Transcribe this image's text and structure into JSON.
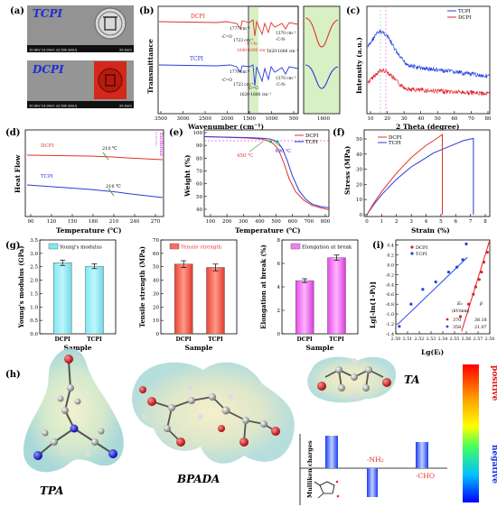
{
  "panels": {
    "a": {
      "label": "(a)",
      "top_title": "TCPI",
      "bottom_title": "DCPI",
      "sem_info_top": "10.0kV 10.0mm x2.50k SE(U)",
      "scale_top": "20.0um",
      "sem_info_bottom": "10.0kV 10.0mm x2.50k SE(U)",
      "scale_bottom": "20.0um",
      "colors": {
        "tcpi_title": "#1a2fd6",
        "dcpi_title": "#1a2fd6"
      }
    },
    "b": {
      "label": "(b)",
      "xlabel": "Wavenumber (cm⁻¹)",
      "ylabel": "Transmittance",
      "ticks": [
        "3500",
        "3000",
        "2500",
        "2000",
        "1500",
        "1000",
        "500"
      ],
      "inset_ticks": [
        "1600"
      ],
      "dcpi_label": "DCPI",
      "tcpi_label": "TCPI",
      "ann": {
        "d1": "1777 cm⁻¹",
        "d2": "-C=O",
        "d3": "1723 cm⁻¹",
        "d4": "-C=N-",
        "d5": "1640-1690 cm⁻¹",
        "d6": "1370 cm⁻¹",
        "d7": "-C-N-",
        "d8": "1620-1680 cm⁻¹",
        "t1": "1779 cm⁻¹",
        "t2": "-C=O",
        "t3": "1723 cm⁻¹",
        "t4": "-C=C-",
        "t5": "1620-1680 cm⁻¹",
        "t6": "1370 cm⁻¹",
        "t7": "-C-N-"
      }
    },
    "c": {
      "label": "(c)",
      "xlabel": "2 Theta (degree)",
      "ylabel": "Intensity (a.u.)",
      "ticks": [
        "10",
        "20",
        "30",
        "40",
        "50",
        "60",
        "70",
        "80"
      ],
      "legend": [
        "TCPI",
        "DCPI"
      ]
    },
    "d": {
      "label": "(d)",
      "xlabel": "Temperature (℃)",
      "ylabel": "Heat Flow",
      "ticks": [
        "90",
        "120",
        "150",
        "180",
        "210",
        "240",
        "270"
      ],
      "dcpi": "DCPI",
      "tcpi": "TCPI",
      "tg_d": "210 ℃",
      "tg_t": "216 ℃",
      "exo": "Exothermic"
    },
    "e": {
      "label": "(e)",
      "xlabel": "Temperature (℃)",
      "ylabel": "Weight (%)",
      "xticks": [
        "100",
        "200",
        "300",
        "400",
        "500",
        "600",
        "700",
        "800"
      ],
      "yticks": [
        "100",
        "90",
        "80",
        "70",
        "60",
        "50",
        "40"
      ],
      "legend": [
        "DCPI",
        "TCPI"
      ],
      "t1": "450 ℃",
      "t2": "490 ℃"
    },
    "f": {
      "label": "(f)",
      "xlabel": "Strain (%)",
      "ylabel": "Stress (MPa)",
      "xticks": [
        "0",
        "1",
        "2",
        "3",
        "4",
        "5",
        "6",
        "7",
        "8"
      ],
      "yticks": [
        "0",
        "10",
        "20",
        "30",
        "40",
        "50"
      ],
      "legend": [
        "DCPI",
        "TCPI"
      ]
    },
    "g": {
      "label": "(g)",
      "xlabel": "Sample",
      "charts": [
        {
          "ylabel": "Young's modulus (GPa)",
          "legend": "Young's modulus",
          "yticks": [
            "0.0",
            "0.5",
            "1.0",
            "1.5",
            "2.0",
            "2.5",
            "3.0",
            "3.5"
          ]
        },
        {
          "ylabel": "Tensile strength (MPa)",
          "legend": "Tensile strength",
          "yticks": [
            "0",
            "10",
            "20",
            "30",
            "40",
            "50",
            "60",
            "70"
          ]
        },
        {
          "ylabel": "Elongation at break (%)",
          "legend": "Elongation at break",
          "yticks": [
            "0",
            "2",
            "4",
            "6",
            "8"
          ]
        }
      ],
      "cats": [
        "DCPI",
        "TCPI"
      ]
    },
    "i": {
      "label": "(i)",
      "xlabel": "Lg(Eᵢ)",
      "ylabel": "Lg[-ln(1-Pᵢ)]",
      "xticks": [
        "2.50",
        "2.51",
        "2.52",
        "2.53",
        "2.54",
        "2.55",
        "2.56",
        "2.57",
        "2.58"
      ],
      "yticks": [
        "0.4",
        "0.2",
        "0.0",
        "-0.2",
        "-0.4",
        "-0.6",
        "-0.8",
        "-1.0",
        "-1.2",
        "-1.4"
      ],
      "legend": [
        "DCPI",
        "TCPI"
      ],
      "h1": "E₀",
      "h2": "β",
      "h3": "(kV/mm)",
      "r1": [
        "370",
        "38.18"
      ],
      "r2": [
        "358",
        "21.07"
      ]
    },
    "h": {
      "label": "(h)",
      "tpa": "TPA",
      "bpada": "BPADA",
      "ta": "TA",
      "mulliken": "Mulliken charges",
      "nh2": "-NH₂",
      "cho": "-CHO",
      "positive": "positive",
      "negative": "negative"
    }
  },
  "chart_data": [
    {
      "type": "line",
      "title": "",
      "xlabel": "Wavenumber (cm⁻¹)",
      "ylabel": "Transmittance",
      "xlim": [
        3500,
        500
      ],
      "series": [
        {
          "name": "DCPI",
          "color": "#e0322a"
        },
        {
          "name": "TCPI",
          "color": "#2a3ad8"
        }
      ]
    },
    {
      "type": "line",
      "xlabel": "2 Theta (degree)",
      "ylabel": "Intensity (a.u.)",
      "xlim": [
        10,
        80
      ],
      "series": [
        {
          "name": "TCPI",
          "color": "#1f3fe0"
        },
        {
          "name": "DCPI",
          "color": "#e0202a"
        }
      ]
    },
    {
      "type": "line",
      "xlabel": "Temperature (℃)",
      "ylabel": "Heat Flow",
      "xlim": [
        80,
        280
      ],
      "series": [
        {
          "name": "DCPI",
          "tg": 210
        },
        {
          "name": "TCPI",
          "tg": 216
        }
      ]
    },
    {
      "type": "line",
      "xlabel": "Temperature (℃)",
      "ylabel": "Weight (%)",
      "xlim": [
        50,
        800
      ],
      "ylim": [
        35,
        105
      ],
      "series": [
        {
          "name": "DCPI",
          "x": [
            50,
            300,
            400,
            450,
            480,
            500,
            530,
            560,
            600,
            650,
            700,
            750,
            800
          ],
          "y": [
            99.5,
            98.5,
            97.5,
            95.5,
            92,
            88,
            78,
            66,
            55,
            48,
            44,
            42,
            40.5
          ]
        },
        {
          "name": "TCPI",
          "x": [
            50,
            300,
            400,
            450,
            490,
            520,
            550,
            580,
            620,
            660,
            700,
            750,
            800
          ],
          "y": [
            99.5,
            98.8,
            98.2,
            97.5,
            95.5,
            90,
            80,
            68,
            56,
            49,
            45,
            43,
            42
          ]
        }
      ]
    },
    {
      "type": "line",
      "xlabel": "Strain (%)",
      "ylabel": "Stress (MPa)",
      "xlim": [
        0,
        8
      ],
      "ylim": [
        0,
        55
      ],
      "series": [
        {
          "name": "DCPI",
          "x": [
            0,
            0.5,
            1,
            1.5,
            2,
            2.5,
            3,
            3.5,
            4,
            4.5,
            5.1,
            5.1
          ],
          "y": [
            0,
            8,
            15,
            21,
            27,
            32,
            37,
            41,
            45,
            48,
            52,
            0
          ]
        },
        {
          "name": "TCPI",
          "x": [
            0,
            0.5,
            1,
            1.5,
            2,
            2.5,
            3,
            3.5,
            4,
            4.5,
            5,
            5.5,
            6,
            6.5,
            7.2,
            7.2
          ],
          "y": [
            0,
            7,
            13,
            18,
            23,
            27,
            31,
            34,
            37,
            40,
            42,
            44,
            46,
            48,
            49.5,
            0
          ]
        }
      ]
    },
    {
      "type": "bar",
      "categories": [
        "DCPI",
        "TCPI"
      ],
      "ylabel": "Young's modulus (GPa)",
      "ylim": [
        0,
        3.5
      ],
      "values": [
        2.65,
        2.52
      ],
      "err": [
        0.1,
        0.09
      ]
    },
    {
      "type": "bar",
      "categories": [
        "DCPI",
        "TCPI"
      ],
      "ylabel": "Tensile strength (MPa)",
      "ylim": [
        0,
        70
      ],
      "values": [
        52,
        49.5
      ],
      "err": [
        2.5,
        2.5
      ]
    },
    {
      "type": "bar",
      "categories": [
        "DCPI",
        "TCPI"
      ],
      "ylabel": "Elongation at break (%)",
      "ylim": [
        0,
        9
      ],
      "values": [
        5.1,
        7.3
      ],
      "err": [
        0.18,
        0.25
      ]
    },
    {
      "type": "scatter",
      "xlabel": "Lg(Eᵢ)",
      "ylabel": "Lg[-ln(1-Pᵢ)]",
      "xlim": [
        2.5,
        2.58
      ],
      "ylim": [
        -1.4,
        0.5
      ],
      "series": [
        {
          "name": "DCPI",
          "color": "#e02020",
          "x": [
            2.555,
            2.562,
            2.566,
            2.568,
            2.571,
            2.573,
            2.575,
            2.578
          ],
          "y": [
            -1.05,
            -0.8,
            -0.6,
            -0.45,
            -0.3,
            -0.15,
            0.05,
            0.25
          ]
        },
        {
          "name": "TCPI",
          "color": "#2040e0",
          "x": [
            2.503,
            2.513,
            2.523,
            2.534,
            2.545,
            2.552,
            2.557,
            2.56
          ],
          "y": [
            -1.25,
            -0.8,
            -0.5,
            -0.35,
            -0.15,
            -0.05,
            0.1,
            0.42
          ]
        }
      ]
    }
  ]
}
